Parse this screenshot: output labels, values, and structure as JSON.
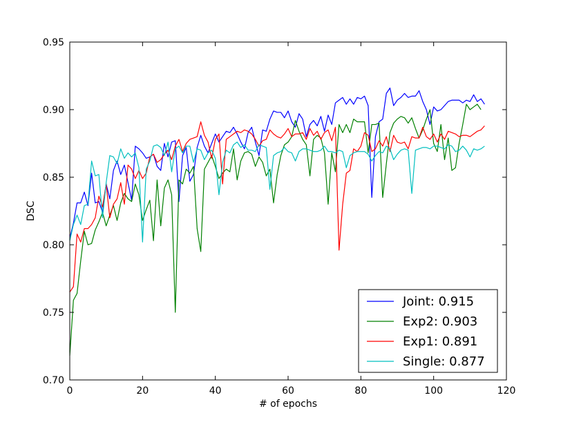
{
  "chart_data": {
    "type": "line",
    "title": "",
    "xlabel": "# of epochs",
    "ylabel": "DSC",
    "xlim": [
      0,
      120
    ],
    "ylim": [
      0.7,
      0.95
    ],
    "xticks": [
      "0",
      "20",
      "40",
      "60",
      "80",
      "100",
      "120"
    ],
    "yticks": [
      "0.70",
      "0.75",
      "0.80",
      "0.85",
      "0.90",
      "0.95"
    ],
    "grid": false,
    "legend_position": "lower-right",
    "series": [
      {
        "name": "Joint: 0.915",
        "color": "#0000ff",
        "values": [
          0.805,
          0.816,
          0.831,
          0.831,
          0.839,
          0.829,
          0.853,
          0.831,
          0.832,
          0.824,
          0.845,
          0.834,
          0.855,
          0.862,
          0.852,
          0.859,
          0.846,
          0.833,
          0.873,
          0.871,
          0.868,
          0.864,
          0.865,
          0.867,
          0.858,
          0.855,
          0.875,
          0.865,
          0.876,
          0.877,
          0.832,
          0.866,
          0.872,
          0.847,
          0.852,
          0.872,
          0.881,
          0.873,
          0.868,
          0.875,
          0.882,
          0.876,
          0.88,
          0.884,
          0.883,
          0.887,
          0.882,
          0.876,
          0.871,
          0.883,
          0.887,
          0.876,
          0.866,
          0.885,
          0.884,
          0.893,
          0.899,
          0.898,
          0.898,
          0.894,
          0.899,
          0.891,
          0.887,
          0.897,
          0.893,
          0.88,
          0.889,
          0.892,
          0.888,
          0.895,
          0.884,
          0.896,
          0.889,
          0.905,
          0.907,
          0.909,
          0.904,
          0.908,
          0.904,
          0.909,
          0.908,
          0.91,
          0.903,
          0.835,
          0.88,
          0.891,
          0.893,
          0.912,
          0.916,
          0.903,
          0.907,
          0.909,
          0.912,
          0.909,
          0.91,
          0.91,
          0.914,
          0.906,
          0.9,
          0.889,
          0.902,
          0.899,
          0.9,
          0.903,
          0.906,
          0.907,
          0.907,
          0.907,
          0.905,
          0.907,
          0.906,
          0.911,
          0.906,
          0.908,
          0.904
        ]
      },
      {
        "name": "Exp2: 0.903",
        "color": "#008000",
        "values": [
          0.718,
          0.759,
          0.764,
          0.788,
          0.81,
          0.8,
          0.801,
          0.811,
          0.817,
          0.824,
          0.814,
          0.822,
          0.829,
          0.818,
          0.831,
          0.838,
          0.834,
          0.832,
          0.845,
          0.837,
          0.818,
          0.826,
          0.833,
          0.803,
          0.848,
          0.814,
          0.842,
          0.848,
          0.837,
          0.75,
          0.848,
          0.845,
          0.856,
          0.853,
          0.858,
          0.812,
          0.795,
          0.856,
          0.861,
          0.866,
          0.858,
          0.849,
          0.853,
          0.856,
          0.854,
          0.871,
          0.848,
          0.862,
          0.868,
          0.869,
          0.867,
          0.858,
          0.865,
          0.861,
          0.851,
          0.856,
          0.831,
          0.852,
          0.866,
          0.874,
          0.876,
          0.88,
          0.892,
          0.884,
          0.878,
          0.874,
          0.851,
          0.878,
          0.881,
          0.879,
          0.868,
          0.83,
          0.868,
          0.854,
          0.889,
          0.883,
          0.889,
          0.883,
          0.893,
          0.891,
          0.891,
          0.891,
          0.868,
          0.889,
          0.889,
          0.89,
          0.835,
          0.86,
          0.883,
          0.89,
          0.893,
          0.895,
          0.894,
          0.89,
          0.894,
          0.886,
          0.879,
          0.885,
          0.893,
          0.9,
          0.875,
          0.869,
          0.889,
          0.863,
          0.879,
          0.855,
          0.857,
          0.875,
          0.889,
          0.904,
          0.9,
          0.902,
          0.904,
          0.9
        ]
      },
      {
        "name": "Exp1: 0.891",
        "color": "#ff0000",
        "values": [
          0.765,
          0.769,
          0.808,
          0.802,
          0.812,
          0.812,
          0.815,
          0.82,
          0.836,
          0.828,
          0.845,
          0.82,
          0.83,
          0.834,
          0.846,
          0.83,
          0.859,
          0.856,
          0.849,
          0.855,
          0.849,
          0.853,
          0.865,
          0.867,
          0.861,
          0.863,
          0.867,
          0.87,
          0.863,
          0.873,
          0.878,
          0.869,
          0.875,
          0.878,
          0.879,
          0.88,
          0.891,
          0.881,
          0.876,
          0.864,
          0.878,
          0.882,
          0.845,
          0.878,
          0.88,
          0.882,
          0.884,
          0.883,
          0.885,
          0.884,
          0.882,
          0.878,
          0.873,
          0.877,
          0.878,
          0.885,
          0.882,
          0.88,
          0.879,
          0.882,
          0.886,
          0.88,
          0.882,
          0.882,
          0.883,
          0.878,
          0.886,
          0.881,
          0.884,
          0.878,
          0.883,
          0.885,
          0.877,
          0.887,
          0.796,
          0.83,
          0.853,
          0.855,
          0.871,
          0.869,
          0.873,
          0.883,
          0.881,
          0.869,
          0.871,
          0.877,
          0.873,
          0.88,
          0.869,
          0.881,
          0.876,
          0.875,
          0.876,
          0.871,
          0.88,
          0.879,
          0.879,
          0.887,
          0.88,
          0.878,
          0.882,
          0.876,
          0.882,
          0.878,
          0.884,
          0.883,
          0.882,
          0.88,
          0.881,
          0.881,
          0.88,
          0.882,
          0.884,
          0.885,
          0.888
        ]
      },
      {
        "name": "Single: 0.877",
        "color": "#00bfbf",
        "values": [
          0.803,
          0.815,
          0.822,
          0.815,
          0.829,
          0.83,
          0.862,
          0.851,
          0.852,
          0.82,
          0.846,
          0.866,
          0.865,
          0.86,
          0.871,
          0.864,
          0.868,
          0.865,
          0.868,
          0.857,
          0.802,
          0.856,
          0.862,
          0.873,
          0.874,
          0.872,
          0.866,
          0.876,
          0.854,
          0.871,
          0.873,
          0.868,
          0.873,
          0.873,
          0.861,
          0.871,
          0.87,
          0.863,
          0.868,
          0.87,
          0.864,
          0.837,
          0.861,
          0.87,
          0.868,
          0.874,
          0.876,
          0.872,
          0.874,
          0.87,
          0.87,
          0.869,
          0.874,
          0.873,
          0.872,
          0.841,
          0.866,
          0.868,
          0.869,
          0.872,
          0.869,
          0.868,
          0.862,
          0.869,
          0.871,
          0.871,
          0.87,
          0.869,
          0.869,
          0.87,
          0.873,
          0.869,
          0.869,
          0.868,
          0.87,
          0.869,
          0.857,
          0.866,
          0.868,
          0.869,
          0.869,
          0.869,
          0.867,
          0.862,
          0.866,
          0.869,
          0.868,
          0.873,
          0.871,
          0.863,
          0.867,
          0.87,
          0.871,
          0.87,
          0.838,
          0.87,
          0.871,
          0.872,
          0.872,
          0.871,
          0.873,
          0.873,
          0.872,
          0.871,
          0.874,
          0.873,
          0.869,
          0.87,
          0.873,
          0.87,
          0.865,
          0.871,
          0.87,
          0.871,
          0.873
        ]
      }
    ]
  }
}
